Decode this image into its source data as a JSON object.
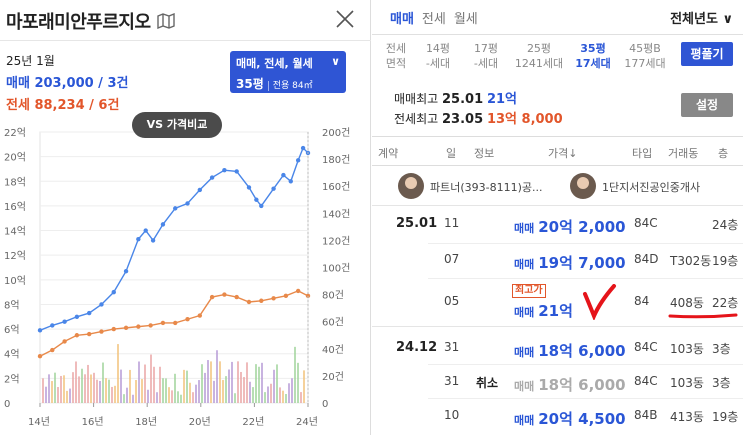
{
  "left": {
    "title": "마포래미안푸르지오",
    "date": "25년 1월",
    "sale_line": "매매 203,000 / 3건",
    "jeonse_line": "전세 88,234 / 6건",
    "type_selector": {
      "types": "매매, 전세, 월세",
      "size": "35평",
      "sub": "전용 84㎡"
    },
    "vs_button": "VS 가격비교"
  },
  "chart_data": {
    "type": "line",
    "x_tick_labels": [
      "14년",
      "16년",
      "18년",
      "20년",
      "22년",
      "24년"
    ],
    "xlim": [
      2014,
      2024.9
    ],
    "y_left_ticks": [
      "0",
      "2억",
      "4억",
      "6억",
      "8억",
      "10억",
      "12억",
      "14억",
      "16억",
      "18억",
      "20억",
      "22억"
    ],
    "ylim_left": [
      0,
      22
    ],
    "y_right_ticks": [
      "0",
      "20건",
      "40건",
      "60건",
      "80건",
      "100건",
      "120건",
      "140건",
      "160건",
      "180건",
      "200건"
    ],
    "ylim_right": [
      0,
      200
    ],
    "series": [
      {
        "color": "#4a86e8",
        "x": [
          2014.0,
          2014.5,
          2015.0,
          2015.5,
          2016.0,
          2016.5,
          2017.0,
          2017.5,
          2018.0,
          2018.3,
          2018.6,
          2019.0,
          2019.5,
          2020.0,
          2020.5,
          2021.0,
          2021.5,
          2022.0,
          2022.5,
          2022.8,
          2023.0,
          2023.5,
          2023.9,
          2024.2,
          2024.5,
          2024.7,
          2024.9
        ],
        "values": [
          5.9,
          6.3,
          6.6,
          7.0,
          7.3,
          8.0,
          9.0,
          10.7,
          13.3,
          14.0,
          13.2,
          14.5,
          15.8,
          16.2,
          17.3,
          18.3,
          18.9,
          18.8,
          17.5,
          16.5,
          16.0,
          17.4,
          18.5,
          18.0,
          19.7,
          20.7,
          20.3
        ]
      },
      {
        "color": "#e8894a",
        "x": [
          2014.0,
          2014.5,
          2015.0,
          2015.5,
          2016.0,
          2016.5,
          2017.0,
          2017.5,
          2018.0,
          2018.5,
          2019.0,
          2019.5,
          2020.0,
          2020.5,
          2021.0,
          2021.5,
          2022.0,
          2022.5,
          2023.0,
          2023.5,
          2024.0,
          2024.5,
          2024.9
        ],
        "values": [
          3.8,
          4.3,
          5.0,
          5.5,
          5.6,
          5.8,
          6.0,
          6.1,
          6.2,
          6.3,
          6.5,
          6.5,
          6.8,
          7.1,
          8.6,
          8.8,
          8.6,
          8.2,
          8.3,
          8.5,
          8.7,
          9.1,
          8.7
        ]
      }
    ]
  },
  "right": {
    "tabs": [
      "매매",
      "전세",
      "월세"
    ],
    "active_tab": "매매",
    "year_selector": "전체년도",
    "pyeong_label": [
      "전세",
      "면적"
    ],
    "pyeong_options": [
      {
        "size": "14평",
        "count": "-세대"
      },
      {
        "size": "17평",
        "count": "-세대"
      },
      {
        "size": "25평",
        "count": "1241세대"
      },
      {
        "size": "35평",
        "count": "17세대"
      },
      {
        "size": "45평B",
        "count": "177세대"
      }
    ],
    "active_pyeong": "35평",
    "pyeong_button": "평풀기",
    "max_sale": {
      "label": "매매최고",
      "date": "25.01",
      "price": "21억"
    },
    "max_jeonse": {
      "label": "전세최고",
      "date": "23.05",
      "price": "13억 8,000"
    },
    "settings_button": "설정",
    "table_headers": [
      "계약",
      "일",
      "정보",
      "가격↓",
      "타입",
      "거래동",
      "층"
    ],
    "agents": [
      "파트너(393-8111)공...",
      "1단지서진공인중개사"
    ],
    "rows": [
      {
        "month": "25.01",
        "day": "11",
        "note": "",
        "kind": "매매",
        "price": "20억 2,000",
        "type": "84C",
        "dong": "",
        "floor": "24층"
      },
      {
        "month": "",
        "day": "07",
        "note": "",
        "kind": "매매",
        "price": "19억 7,000",
        "type": "84D",
        "dong": "T302동",
        "floor": "19층"
      },
      {
        "month": "",
        "day": "05",
        "note": "",
        "kind": "매매",
        "price": "21억",
        "badge": "최고가",
        "type": "84",
        "dong": "408동",
        "floor": "22층"
      },
      {
        "month": "24.12",
        "day": "31",
        "note": "",
        "kind": "매매",
        "price": "18억 6,000",
        "type": "84C",
        "dong": "103동",
        "floor": "3층"
      },
      {
        "month": "",
        "day": "31",
        "note": "취소",
        "kind": "매매",
        "price": "18억 6,000",
        "type": "84C",
        "dong": "103동",
        "floor": "3층"
      },
      {
        "month": "",
        "day": "10",
        "note": "",
        "kind": "매매",
        "price": "20억 4,500",
        "type": "84B",
        "dong": "413동",
        "floor": "19층"
      }
    ]
  }
}
